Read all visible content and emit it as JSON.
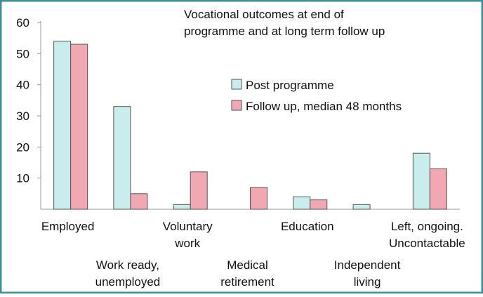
{
  "chart_data": {
    "type": "bar",
    "title": "Vocational outcomes at end of\nprogramme and at long term follow up",
    "categories": [
      "Employed",
      "Work ready,\nunemployed",
      "Voluntary\nwork",
      "Medical\nretirement",
      "Education",
      "Independent\nliving",
      "Left, ongoing.\nUncontactable"
    ],
    "series": [
      {
        "name": "Post programme",
        "color": "#c9ecec",
        "values": [
          54,
          33,
          1.5,
          0,
          4,
          1.5,
          18
        ]
      },
      {
        "name": "Follow up, median 48 months",
        "color": "#f2a8b3",
        "values": [
          53,
          5,
          12,
          7,
          3,
          0,
          13
        ]
      }
    ],
    "ylim": [
      0,
      60
    ],
    "yticks": [
      10,
      20,
      30,
      40,
      50,
      60
    ]
  }
}
